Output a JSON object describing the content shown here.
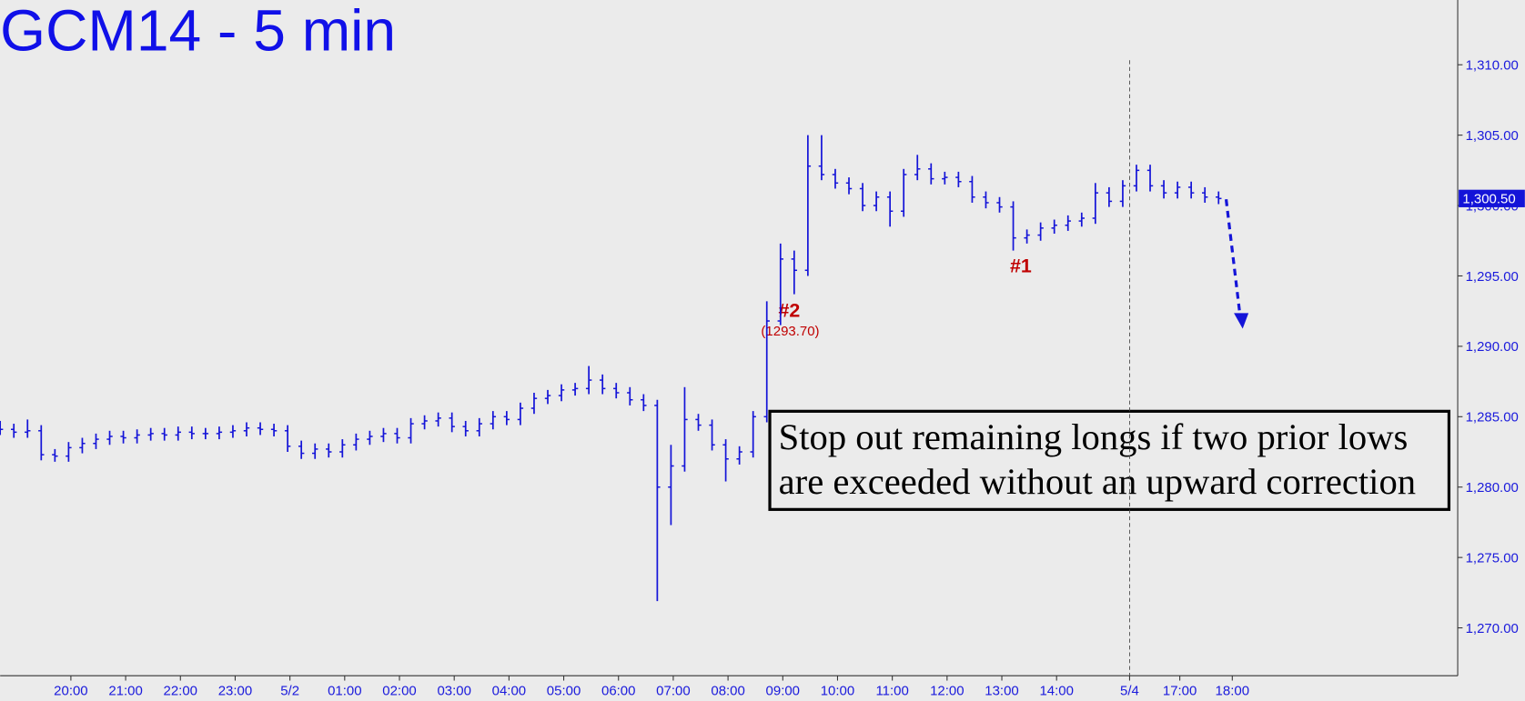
{
  "chart_data": {
    "type": "ohlc",
    "title": "GCM14 - 5 min",
    "color": "#1414d8",
    "x": [
      0,
      3,
      6,
      9,
      12,
      15,
      18,
      21,
      24,
      27,
      30,
      33,
      36,
      39,
      42,
      45,
      48,
      51,
      54,
      57,
      60,
      63,
      66,
      69,
      72,
      75,
      78,
      81,
      84,
      87,
      90,
      93,
      96,
      99,
      102,
      105,
      108,
      111,
      114,
      117,
      120,
      123,
      126,
      129,
      132,
      135,
      138,
      141,
      144,
      147,
      150,
      153,
      156,
      159,
      162,
      165,
      168,
      171,
      174,
      177,
      180,
      183,
      186,
      189,
      192,
      195,
      198,
      201,
      204,
      207,
      210,
      213,
      216,
      219,
      222,
      225,
      228,
      231,
      234,
      237,
      240,
      243,
      246,
      249,
      252,
      255,
      258,
      261,
      264,
      267
    ],
    "open": [
      1284.3,
      1284.1,
      1283.9,
      1284.0,
      1282.3,
      1282.2,
      1282.8,
      1283.1,
      1283.4,
      1283.6,
      1283.5,
      1283.7,
      1283.8,
      1283.7,
      1283.9,
      1283.8,
      1283.8,
      1283.9,
      1284.0,
      1284.2,
      1284.1,
      1284.0,
      1282.9,
      1282.4,
      1282.7,
      1282.5,
      1283.0,
      1283.4,
      1283.6,
      1283.8,
      1283.5,
      1284.5,
      1284.7,
      1284.9,
      1284.3,
      1284.0,
      1284.5,
      1285.0,
      1284.8,
      1285.6,
      1286.3,
      1286.5,
      1286.9,
      1287.0,
      1287.6,
      1287.0,
      1286.7,
      1286.2,
      1285.8,
      1280.0,
      1281.5,
      1284.8,
      1284.4,
      1283.0,
      1282.0,
      1282.5,
      1285.0,
      1291.8,
      1296.2,
      1295.4,
      1302.8,
      1302.2,
      1301.6,
      1301.2,
      1300.0,
      1300.6,
      1299.6,
      1302.2,
      1302.6,
      1301.9,
      1302.0,
      1301.7,
      1300.6,
      1300.2,
      1299.9,
      1297.7,
      1297.9,
      1298.4,
      1298.6,
      1298.9,
      1299.1,
      1300.9,
      1300.3,
      1301.4,
      1302.5,
      1301.4,
      1300.9,
      1301.3,
      1300.9,
      1300.6
    ],
    "high": [
      1284.7,
      1284.5,
      1284.8,
      1284.4,
      1282.7,
      1283.2,
      1283.5,
      1283.8,
      1284.0,
      1284.0,
      1284.1,
      1284.2,
      1284.2,
      1284.3,
      1284.3,
      1284.2,
      1284.3,
      1284.4,
      1284.6,
      1284.6,
      1284.5,
      1284.4,
      1283.3,
      1283.1,
      1283.1,
      1283.4,
      1283.8,
      1284.0,
      1284.2,
      1284.2,
      1284.9,
      1285.1,
      1285.3,
      1285.3,
      1284.7,
      1284.9,
      1285.4,
      1285.4,
      1286.0,
      1286.7,
      1286.9,
      1287.3,
      1287.4,
      1288.6,
      1288.0,
      1287.4,
      1287.1,
      1286.6,
      1286.2,
      1283.0,
      1287.1,
      1285.2,
      1284.8,
      1283.4,
      1282.9,
      1285.4,
      1293.2,
      1297.3,
      1296.8,
      1305.0,
      1305.0,
      1302.6,
      1302.0,
      1301.6,
      1301.0,
      1301.0,
      1302.6,
      1303.6,
      1303.0,
      1302.4,
      1302.4,
      1302.1,
      1301.0,
      1300.6,
      1300.3,
      1298.3,
      1298.8,
      1299.0,
      1299.3,
      1299.5,
      1301.6,
      1301.3,
      1301.8,
      1302.9,
      1302.9,
      1301.8,
      1301.7,
      1301.7,
      1301.3,
      1301.0
    ],
    "low": [
      1283.7,
      1283.5,
      1283.5,
      1281.9,
      1281.8,
      1281.8,
      1282.4,
      1282.7,
      1283.0,
      1283.1,
      1283.1,
      1283.3,
      1283.3,
      1283.3,
      1283.4,
      1283.4,
      1283.4,
      1283.5,
      1283.6,
      1283.7,
      1283.6,
      1282.5,
      1282.0,
      1282.0,
      1282.1,
      1282.1,
      1282.6,
      1283.0,
      1283.2,
      1283.1,
      1283.1,
      1284.1,
      1284.3,
      1283.9,
      1283.6,
      1283.6,
      1284.1,
      1284.4,
      1284.4,
      1285.2,
      1285.9,
      1286.1,
      1286.5,
      1286.6,
      1286.6,
      1286.3,
      1285.8,
      1285.4,
      1271.9,
      1277.3,
      1281.1,
      1284.0,
      1282.6,
      1280.4,
      1281.6,
      1282.1,
      1284.6,
      1291.5,
      1293.7,
      1295.0,
      1301.8,
      1301.2,
      1300.8,
      1299.6,
      1299.6,
      1298.5,
      1299.2,
      1301.8,
      1301.5,
      1301.5,
      1301.3,
      1300.2,
      1299.8,
      1299.5,
      1296.8,
      1297.3,
      1297.5,
      1298.0,
      1298.2,
      1298.5,
      1298.7,
      1299.9,
      1299.9,
      1301.0,
      1301.0,
      1300.5,
      1300.5,
      1300.5,
      1300.2,
      1300.1
    ],
    "close": [
      1284.1,
      1283.9,
      1284.0,
      1282.3,
      1282.2,
      1282.8,
      1283.1,
      1283.4,
      1283.6,
      1283.5,
      1283.7,
      1283.8,
      1283.7,
      1283.9,
      1283.8,
      1283.8,
      1283.9,
      1284.0,
      1284.2,
      1284.1,
      1284.0,
      1282.9,
      1282.4,
      1282.7,
      1282.5,
      1283.0,
      1283.4,
      1283.6,
      1283.8,
      1283.5,
      1284.5,
      1284.7,
      1284.9,
      1284.3,
      1284.0,
      1284.5,
      1285.0,
      1284.8,
      1285.6,
      1286.3,
      1286.5,
      1286.9,
      1287.0,
      1287.6,
      1287.0,
      1286.7,
      1286.2,
      1285.8,
      1280.0,
      1281.5,
      1284.8,
      1284.4,
      1283.0,
      1282.0,
      1282.5,
      1285.0,
      1291.8,
      1296.2,
      1295.4,
      1302.8,
      1302.2,
      1301.6,
      1301.2,
      1300.0,
      1300.6,
      1299.6,
      1302.2,
      1302.6,
      1301.9,
      1302.0,
      1301.7,
      1300.6,
      1300.2,
      1299.9,
      1297.7,
      1297.9,
      1298.4,
      1298.6,
      1298.9,
      1299.1,
      1300.9,
      1300.3,
      1301.4,
      1302.5,
      1301.4,
      1300.9,
      1301.3,
      1300.9,
      1300.6,
      1300.5
    ],
    "xlim": [
      0,
      319.4
    ],
    "xticks": [
      {
        "value": 15.5,
        "label": "20:00"
      },
      {
        "value": 27.5,
        "label": "21:00"
      },
      {
        "value": 39.5,
        "label": "22:00"
      },
      {
        "value": 51.5,
        "label": "23:00"
      },
      {
        "value": 63.5,
        "label": "5/2"
      },
      {
        "value": 75.5,
        "label": "01:00"
      },
      {
        "value": 87.5,
        "label": "02:00"
      },
      {
        "value": 99.5,
        "label": "03:00"
      },
      {
        "value": 111.5,
        "label": "04:00"
      },
      {
        "value": 123.5,
        "label": "05:00"
      },
      {
        "value": 135.5,
        "label": "06:00"
      },
      {
        "value": 147.5,
        "label": "07:00"
      },
      {
        "value": 159.5,
        "label": "08:00"
      },
      {
        "value": 171.5,
        "label": "09:00"
      },
      {
        "value": 183.5,
        "label": "10:00"
      },
      {
        "value": 195.5,
        "label": "11:00"
      },
      {
        "value": 207.5,
        "label": "12:00"
      },
      {
        "value": 219.5,
        "label": "13:00"
      },
      {
        "value": 231.5,
        "label": "14:00"
      },
      {
        "value": 247.5,
        "label": "5/4"
      },
      {
        "value": 258.5,
        "label": "17:00"
      },
      {
        "value": 270,
        "label": "18:00"
      }
    ],
    "ylim": [
      1266.6,
      1314.6
    ],
    "yticks": [
      {
        "value": 1270,
        "label": "1,270.00"
      },
      {
        "value": 1275,
        "label": "1,275.00"
      },
      {
        "value": 1280,
        "label": "1,280.00"
      },
      {
        "value": 1285,
        "label": "1,285.00"
      },
      {
        "value": 1290,
        "label": "1,290.00"
      },
      {
        "value": 1295,
        "label": "1,295.00"
      },
      {
        "value": 1300,
        "label": "1,300.00"
      },
      {
        "value": 1305,
        "label": "1,305.00"
      },
      {
        "value": 1310,
        "label": "1,310.00"
      }
    ],
    "last_price": {
      "value": 1300.5,
      "label": "1,300.50"
    },
    "annotations": {
      "label_2": "#2",
      "label_2_price": "(1293.70)",
      "label_1": "#1",
      "note": [
        "Stop out remaining longs if two prior lows",
        "are exceeded without an upward correction"
      ]
    }
  }
}
